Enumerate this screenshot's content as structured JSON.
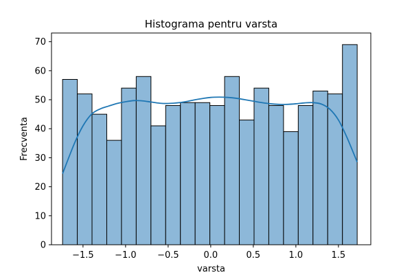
{
  "chart_data": {
    "type": "bar",
    "title": "Histograma pentru varsta",
    "xlabel": "varsta",
    "ylabel": "Frecventa",
    "xlim": [
      -1.87,
      1.88
    ],
    "ylim": [
      0,
      73
    ],
    "x_ticks": [
      -1.5,
      -1.0,
      -0.5,
      0.0,
      0.5,
      1.0,
      1.5
    ],
    "x_tick_labels": [
      "−1.5",
      "−1.0",
      "−0.5",
      "0.0",
      "0.5",
      "1.0",
      "1.5"
    ],
    "y_ticks": [
      0,
      10,
      20,
      30,
      40,
      50,
      60,
      70
    ],
    "y_tick_labels": [
      "0",
      "10",
      "20",
      "30",
      "40",
      "50",
      "60",
      "70"
    ],
    "grid": false,
    "bar_color": "#8db8d9",
    "bar_edge_color": "#000000",
    "line_color": "#1f77b4",
    "bins": {
      "edges": [
        -1.74,
        -1.567,
        -1.394,
        -1.221,
        -1.048,
        -0.875,
        -0.702,
        -0.529,
        -0.356,
        -0.183,
        -0.01,
        0.163,
        0.336,
        0.509,
        0.682,
        0.855,
        1.028,
        1.201,
        1.374,
        1.547,
        1.72
      ],
      "counts": [
        57,
        52,
        45,
        36,
        54,
        58,
        41,
        48,
        49,
        49,
        48,
        58,
        43,
        54,
        48,
        39,
        48,
        53,
        52,
        69
      ]
    },
    "kde": {
      "x": [
        -1.74,
        -1.6,
        -1.5,
        -1.4,
        -1.3,
        -1.2,
        -1.1,
        -1.0,
        -0.9,
        -0.8,
        -0.7,
        -0.6,
        -0.5,
        -0.4,
        -0.3,
        -0.2,
        -0.1,
        0.0,
        0.1,
        0.2,
        0.3,
        0.4,
        0.5,
        0.6,
        0.7,
        0.8,
        0.9,
        1.0,
        1.1,
        1.2,
        1.3,
        1.4,
        1.5,
        1.6,
        1.72
      ],
      "y": [
        24.5,
        35,
        41,
        45,
        46.8,
        47.8,
        48.7,
        49.3,
        49.7,
        49.6,
        49.2,
        48.8,
        48.7,
        48.9,
        49.3,
        49.9,
        50.4,
        50.8,
        50.9,
        50.8,
        50.5,
        50.0,
        49.5,
        49.0,
        48.6,
        48.4,
        48.4,
        48.6,
        48.9,
        49.0,
        48.5,
        46.7,
        43.0,
        37.0,
        28.5
      ]
    }
  }
}
